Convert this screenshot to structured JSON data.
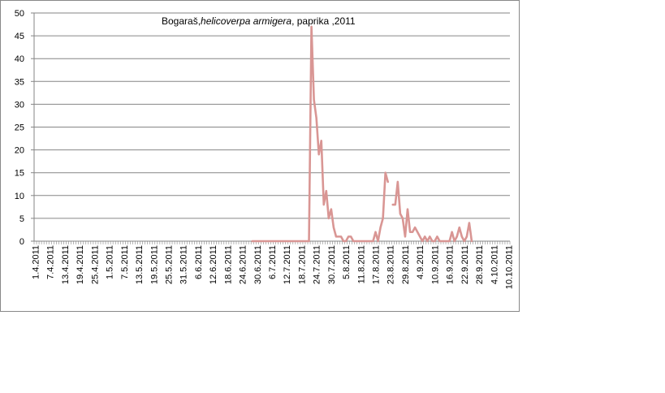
{
  "chart_data": {
    "type": "line",
    "title_parts": [
      "Bogaraš,",
      "helicoverpa armigera",
      ", paprika ,2011"
    ],
    "xlabel": "",
    "ylabel": "",
    "ylim": [
      0,
      50
    ],
    "yticks": [
      0,
      5,
      10,
      15,
      20,
      25,
      30,
      35,
      40,
      45,
      50
    ],
    "grid": true,
    "legend": "none",
    "line_color": "#d99694",
    "x_tick_labels": [
      "1.4.2011",
      "7.4.2011",
      "13.4.2011",
      "19.4.2011",
      "25.4.2011",
      "1.5.2011",
      "7.5.2011",
      "13.5.2011",
      "19.5.2011",
      "25.5.2011",
      "31.5.2011",
      "6.6.2011",
      "12.6.2011",
      "18.6.2011",
      "24.6.2011",
      "30.6.2011",
      "6.7.2011",
      "12.7.2011",
      "18.7.2011",
      "24.7.2011",
      "30.7.2011",
      "5.8.2011",
      "11.8.2011",
      "17.8.2011",
      "23.8.2011",
      "29.8.2011",
      "4.9.2011",
      "10.9.2011",
      "16.9.2011",
      "22.9.2011",
      "28.9.2011",
      "4.10.2011",
      "10.10.2011"
    ],
    "series_start": "28.6.2011",
    "series": [
      {
        "values": [
          0,
          0,
          0,
          0,
          0,
          0,
          0,
          0,
          0,
          0,
          0,
          0,
          0,
          0,
          0,
          0,
          0,
          0,
          0,
          0,
          0,
          0,
          0,
          0,
          47,
          31,
          27,
          19,
          22,
          8,
          11,
          5,
          7,
          3,
          1,
          1,
          1,
          0,
          0,
          1,
          1,
          0,
          0,
          0,
          0,
          0,
          0,
          0,
          0,
          0,
          2,
          0,
          3,
          5,
          15,
          13,
          null,
          8,
          8,
          13,
          6,
          5,
          1,
          7,
          2,
          2,
          3,
          2,
          1,
          0,
          1,
          0,
          1,
          0,
          0,
          1,
          0,
          0,
          0,
          0,
          0,
          2,
          0,
          1,
          3,
          1,
          0,
          1,
          4,
          0
        ]
      }
    ]
  }
}
